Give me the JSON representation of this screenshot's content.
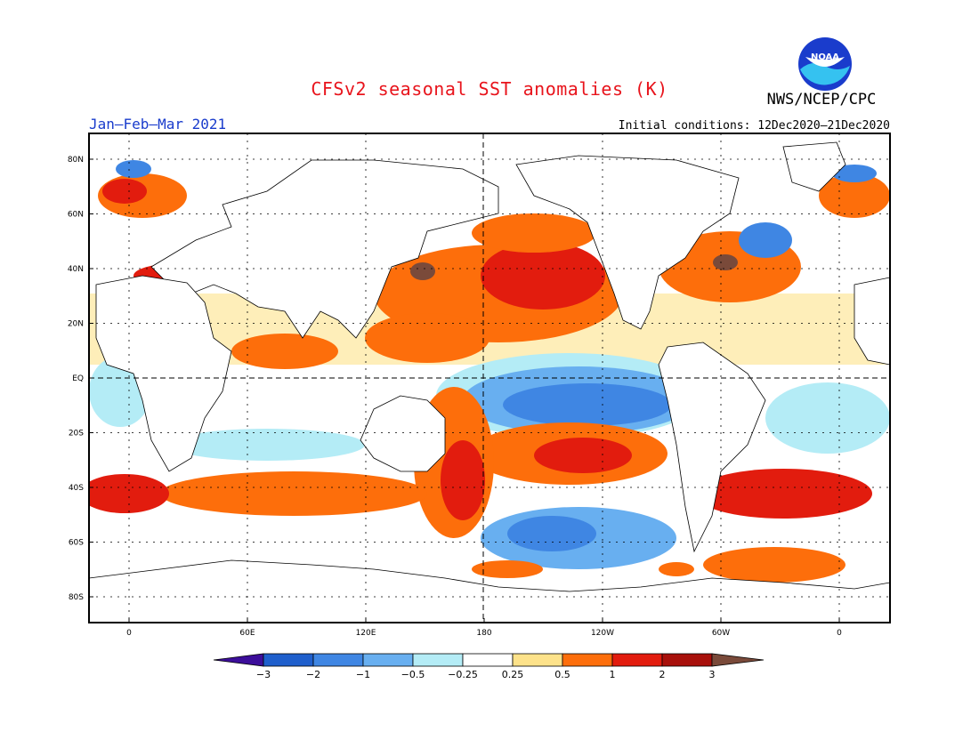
{
  "title": "CFSv2 seasonal SST anomalies (K)",
  "agency": "NWS/NCEP/CPC",
  "logo_text": "NOAA",
  "period": "Jan–Feb–Mar 2021",
  "initial_conditions": "Initial conditions: 12Dec2020–21Dec2020",
  "lat_labels": [
    "80N",
    "60N",
    "40N",
    "20N",
    "EQ",
    "20S",
    "40S",
    "60S",
    "80S"
  ],
  "lat_values": [
    80,
    60,
    40,
    20,
    0,
    -20,
    -40,
    -60,
    -80
  ],
  "lon_labels": [
    "0",
    "60E",
    "120E",
    "180",
    "120W",
    "60W",
    "0"
  ],
  "lon_values": [
    0,
    60,
    120,
    180,
    240,
    300,
    360
  ],
  "colorbar": {
    "ticks": [
      "−3",
      "−2",
      "−1",
      "−0.5",
      "−0.25",
      "0.25",
      "0.5",
      "1",
      "2",
      "3"
    ],
    "colors": [
      "#3c0e9a",
      "#1f5fcc",
      "#3f86e3",
      "#68aff0",
      "#b4ecf6",
      "#ffffff",
      "#fde28a",
      "#fd6e0b",
      "#e21c0e",
      "#a8100b",
      "#7a4a3a"
    ]
  },
  "colors": {
    "land": "#ffffff",
    "coast": "#000000",
    "title": "#e8141c",
    "period": "#1a3ccc"
  }
}
